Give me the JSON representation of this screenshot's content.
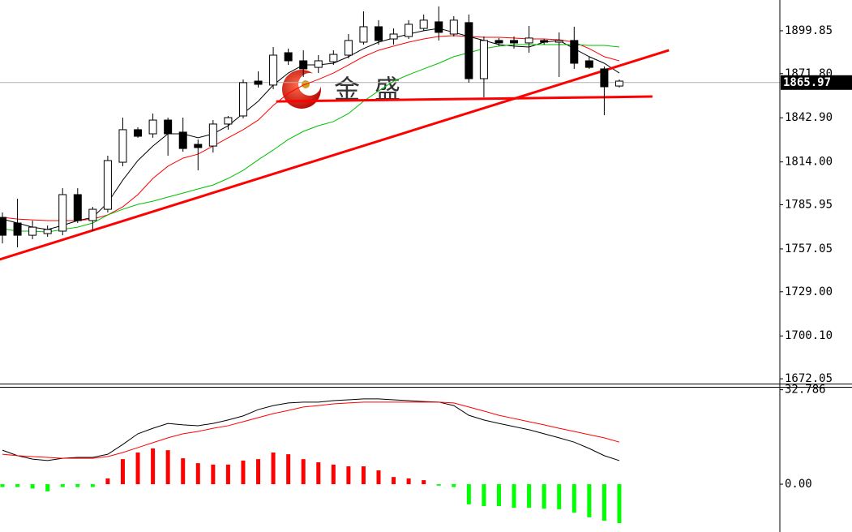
{
  "chart_data": [
    {
      "type": "candlestick",
      "watermark": [
        "金",
        "盛"
      ],
      "ylim": [
        1668.9,
        1920.0
      ],
      "yticks": [
        1899.85,
        {
          "value": 1871.8,
          "label": "1871.80"
        },
        {
          "value": 1842.9,
          "label": "1842.90"
        },
        {
          "value": 1814,
          "label": "1814.00"
        },
        1785.95,
        1757.05,
        {
          "value": 1729,
          "label": "1729.00"
        },
        {
          "value": 1700.1,
          "label": "1700.10"
        },
        1672.05
      ],
      "last_price": 1865.97,
      "open": [
        1777.7,
        1774.0,
        1766.0,
        1767.1,
        1768.7,
        1792.6,
        1775.6,
        1783.0,
        1813.8,
        1835.1,
        1832.4,
        1841.4,
        1833.5,
        1825.5,
        1824.4,
        1838.8,
        1844.1,
        1866.9,
        1864.3,
        1885.5,
        1880.2,
        1875.9,
        1879.6,
        1883.9,
        1892.4,
        1902.5,
        1894.5,
        1896.1,
        1901.4,
        1905.7,
        1897.7,
        1905.2,
        1868.5,
        1893.5,
        1893.5,
        1891.9,
        1893.5,
        1892.4,
        1893.5,
        1880.2,
        1874.9,
        1863.7
      ],
      "high": [
        1780.9,
        1789.9,
        1775.6,
        1772.4,
        1796.8,
        1796.8,
        1784.6,
        1818.1,
        1843.0,
        1836.7,
        1845.7,
        1843.0,
        1843.0,
        1828.7,
        1841.4,
        1844.1,
        1868.0,
        1873.3,
        1889.2,
        1888.2,
        1887.1,
        1883.9,
        1887.1,
        1897.7,
        1912.6,
        1906.8,
        1901.4,
        1906.8,
        1910.5,
        1915.8,
        1909.4,
        1910.5,
        1896.1,
        1895.1,
        1896.1,
        1903.0,
        1894.5,
        1898.8,
        1902.5,
        1882.9,
        1876.5,
        1868.0
      ],
      "low": [
        1760.7,
        1758.1,
        1763.4,
        1765.0,
        1766.0,
        1774.0,
        1768.7,
        1780.9,
        1811.2,
        1829.8,
        1829.8,
        1818.1,
        1820.7,
        1808.5,
        1820.2,
        1835.1,
        1842.5,
        1862.7,
        1861.6,
        1877.5,
        1869.6,
        1872.2,
        1877.5,
        1881.8,
        1890.8,
        1890.8,
        1890.8,
        1894.5,
        1899.9,
        1893.5,
        1896.1,
        1865.9,
        1856.3,
        1889.8,
        1888.2,
        1885.5,
        1890.8,
        1869.6,
        1874.9,
        1874.9,
        1844.6,
        1862.7
      ],
      "close": [
        1766.0,
        1766.0,
        1771.3,
        1769.8,
        1792.6,
        1775.6,
        1783.0,
        1814.9,
        1835.1,
        1830.8,
        1841.4,
        1832.4,
        1822.8,
        1823.4,
        1838.8,
        1843.0,
        1865.9,
        1864.8,
        1883.9,
        1880.2,
        1874.9,
        1880.2,
        1884.4,
        1893.5,
        1902.5,
        1893.5,
        1897.7,
        1904.1,
        1906.8,
        1898.8,
        1906.8,
        1868.5,
        1893.5,
        1891.9,
        1891.9,
        1895.1,
        1892.4,
        1893.5,
        1878.6,
        1875.9,
        1863.2,
        1866.9
      ],
      "series": [
        {
          "color": "#000000",
          "values": [
            1776.6,
            1774.0,
            1771.3,
            1769.8,
            1772.4,
            1775.6,
            1777.7,
            1787.3,
            1802.1,
            1814.9,
            1824.4,
            1832.4,
            1832.4,
            1829.8,
            1832.4,
            1837.7,
            1845.7,
            1853.7,
            1864.3,
            1872.2,
            1877.5,
            1877.5,
            1878.6,
            1882.9,
            1888.2,
            1892.4,
            1895.1,
            1897.7,
            1899.9,
            1901.4,
            1898.8,
            1896.1,
            1893.5,
            1890.8,
            1889.8,
            1889.2,
            1892.4,
            1893.5,
            1888.2,
            1882.9,
            1878.6,
            1872.2
          ]
        },
        {
          "color": "#ff0000",
          "values": [
            1777.7,
            1776.6,
            1776.1,
            1775.6,
            1775.6,
            1775.6,
            1776.6,
            1779.3,
            1784.6,
            1792.6,
            1803.2,
            1811.2,
            1816.5,
            1819.1,
            1824.4,
            1829.8,
            1835.1,
            1841.4,
            1851.0,
            1858.9,
            1864.3,
            1868.0,
            1872.2,
            1877.5,
            1882.9,
            1887.1,
            1889.8,
            1892.4,
            1894.5,
            1896.1,
            1896.7,
            1896.1,
            1895.6,
            1895.6,
            1895.1,
            1894.5,
            1894.5,
            1894.0,
            1892.4,
            1888.2,
            1882.9,
            1880.2
          ]
        },
        {
          "color": "#00c000",
          "values": [
            1770.3,
            1768.7,
            1768.7,
            1768.1,
            1769.8,
            1771.3,
            1774.0,
            1779.3,
            1783.0,
            1786.2,
            1788.3,
            1791.0,
            1793.6,
            1796.3,
            1798.9,
            1803.2,
            1808.5,
            1815.4,
            1821.8,
            1828.7,
            1834.0,
            1837.7,
            1840.4,
            1845.7,
            1853.7,
            1860.5,
            1866.9,
            1871.1,
            1874.9,
            1878.6,
            1882.9,
            1885.5,
            1888.2,
            1889.8,
            1890.8,
            1890.8,
            1890.8,
            1890.8,
            1890.8,
            1890.3,
            1890.3,
            1889.2
          ]
        }
      ],
      "trendlines": [
        {
          "color": "#ff0000",
          "x": [
            -0.2,
            44.3
          ],
          "y": [
            1750.1,
            1887.1
          ]
        },
        {
          "color": "#ff0000",
          "x": [
            18.2,
            43.2
          ],
          "y": [
            1853.6,
            1856.8
          ]
        }
      ]
    },
    {
      "type": "macd",
      "ylim": [
        -16.6,
        33.8
      ],
      "yticks": [
        32.786,
        {
          "value": 0,
          "label": "0.00"
        }
      ],
      "up_color": "#ff0000",
      "down_color": "#00ff00",
      "histogram": [
        -1.0,
        -1.0,
        -1.5,
        -2.5,
        -1.0,
        -1.0,
        -1.0,
        2.0,
        8.7,
        11.0,
        12.4,
        11.8,
        9.0,
        7.3,
        6.8,
        6.8,
        8.2,
        8.7,
        11.0,
        10.4,
        8.7,
        7.6,
        6.8,
        6.2,
        6.2,
        4.8,
        2.5,
        2.0,
        1.4,
        -0.5,
        -1.0,
        -7.0,
        -7.6,
        -7.6,
        -8.2,
        -8.2,
        -8.5,
        -8.7,
        -9.9,
        -11.5,
        -12.7,
        -13.5
      ],
      "series": [
        {
          "color": "#000000",
          "values": [
            11.8,
            9.9,
            8.7,
            8.2,
            9.0,
            9.3,
            9.3,
            10.4,
            13.8,
            17.5,
            19.4,
            21.1,
            20.6,
            20.3,
            21.1,
            22.3,
            23.7,
            25.9,
            27.3,
            28.2,
            28.5,
            28.5,
            29.0,
            29.3,
            29.6,
            29.6,
            29.3,
            29.0,
            28.7,
            28.5,
            27.3,
            23.9,
            22.3,
            21.1,
            20.0,
            18.9,
            17.5,
            16.1,
            14.6,
            12.4,
            9.9,
            8.2
          ]
        },
        {
          "color": "#ff0000",
          "values": [
            10.4,
            9.9,
            9.6,
            9.3,
            9.0,
            9.0,
            9.0,
            9.6,
            11.0,
            12.7,
            14.4,
            16.1,
            17.5,
            18.3,
            19.4,
            20.3,
            21.7,
            23.1,
            24.5,
            25.6,
            26.8,
            27.3,
            27.9,
            28.2,
            28.5,
            28.5,
            28.5,
            28.5,
            28.5,
            28.5,
            28.2,
            26.8,
            25.4,
            23.9,
            22.8,
            21.7,
            20.6,
            19.4,
            18.3,
            17.2,
            16.1,
            14.6
          ]
        }
      ]
    }
  ]
}
